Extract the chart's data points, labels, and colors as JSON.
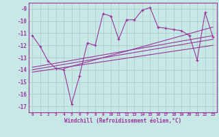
{
  "title": "",
  "xlabel": "Windchill (Refroidissement éolien,°C)",
  "ylabel": "",
  "bg_color": "#c8e8e8",
  "grid_color": "#b0d0d0",
  "line_color": "#993399",
  "x_data": [
    0,
    1,
    2,
    3,
    4,
    5,
    6,
    7,
    8,
    9,
    10,
    11,
    12,
    13,
    14,
    15,
    16,
    17,
    18,
    19,
    20,
    21,
    22,
    23
  ],
  "y_data": [
    -11.2,
    -12.1,
    -13.3,
    -13.9,
    -14.0,
    -16.8,
    -14.5,
    -11.8,
    -12.0,
    -9.4,
    -9.6,
    -11.5,
    -9.9,
    -9.9,
    -9.1,
    -8.9,
    -10.5,
    -10.6,
    -10.7,
    -10.8,
    -11.2,
    -13.2,
    -9.3,
    -11.3
  ],
  "ylim": [
    -17.5,
    -8.5
  ],
  "xlim": [
    -0.5,
    23.5
  ],
  "yticks": [
    -9,
    -10,
    -11,
    -12,
    -13,
    -14,
    -15,
    -16,
    -17
  ],
  "xticks": [
    0,
    1,
    2,
    3,
    4,
    5,
    6,
    7,
    8,
    9,
    10,
    11,
    12,
    13,
    14,
    15,
    16,
    17,
    18,
    19,
    20,
    21,
    22,
    23
  ],
  "trend_lines": [
    {
      "x0": 0,
      "y0": -13.8,
      "x1": 23,
      "y1": -11.2
    },
    {
      "x0": 0,
      "y0": -14.0,
      "x1": 23,
      "y1": -11.5
    },
    {
      "x0": 0,
      "y0": -14.2,
      "x1": 23,
      "y1": -12.0
    },
    {
      "x0": 4,
      "y0": -13.9,
      "x1": 23,
      "y1": -10.5
    }
  ]
}
